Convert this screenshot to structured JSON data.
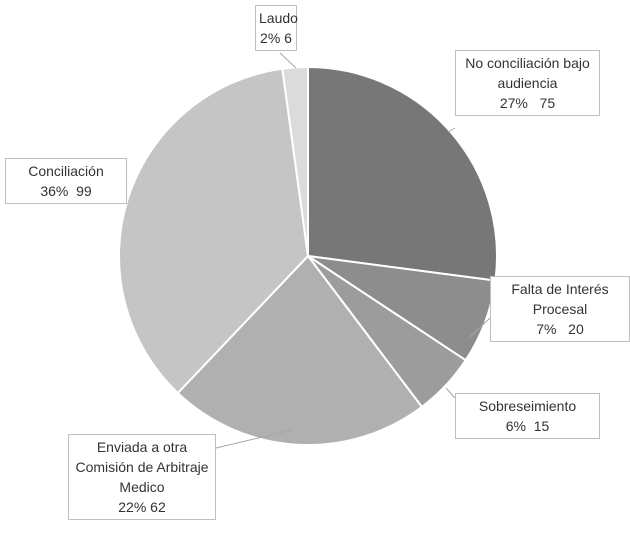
{
  "chart_data": {
    "type": "pie",
    "categories": [
      "No conciliación bajo audiencia",
      "Falta de Interés Procesal",
      "Sobreseimiento",
      "Enviada a otra Comisión de Arbitraje Medico",
      "Conciliación",
      "Laudo"
    ],
    "values": [
      75,
      20,
      15,
      62,
      99,
      6
    ],
    "value_labels": [
      "27%   75",
      "7%   20",
      "6%  15",
      "22% 62",
      "36%  99",
      "2% 6"
    ],
    "colors": [
      "#777777",
      "#8d8d8d",
      "#9c9c9c",
      "#b0b0b0",
      "#c5c5c5",
      "#dbdbdb"
    ]
  }
}
